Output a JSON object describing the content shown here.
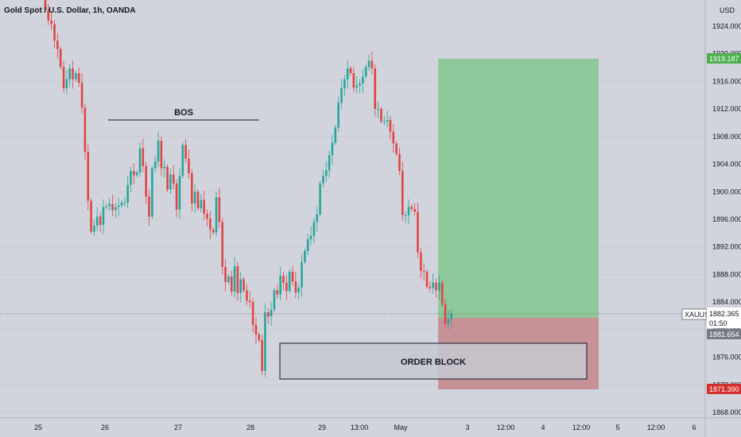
{
  "chart": {
    "title": "Gold Spot / U.S. Dollar, 1h, OANDA",
    "currency": "USD",
    "price_ticks": [
      "1924.000",
      "1920.000",
      "1916.000",
      "1912.000",
      "1908.000",
      "1904.000",
      "1900.000",
      "1896.000",
      "1892.000",
      "1888.000",
      "1884.000",
      "1880.000",
      "1876.000",
      "1872.000",
      "1868.000"
    ],
    "time_ticks": [
      "25",
      "26",
      "27",
      "28",
      "29",
      "13:00",
      "May",
      "3",
      "12:00",
      "4",
      "12:00",
      "5",
      "12:00",
      "6"
    ],
    "annotations": {
      "bos": "BOS",
      "order_block": "ORDER BLOCK"
    },
    "badges": {
      "target": "1919.187",
      "symbol": "XAUUSD",
      "last_price": "1882.365",
      "countdown": "01:50",
      "entry": "1881.654",
      "stop": "1871.390"
    },
    "colors": {
      "background": "#d1d4dc",
      "bull": "#26a69a",
      "bear": "#e04545",
      "profit_zone": "#8fc89a",
      "loss_zone": "#c79198",
      "order_block": "#c5c8d0",
      "target_badge": "#4caf50",
      "stop_badge": "#d32f2f"
    }
  },
  "chart_data": {
    "type": "candlestick",
    "title": "Gold Spot / U.S. Dollar, 1h, OANDA",
    "ylabel": "USD",
    "ylim": [
      1866.5,
      1926.0
    ],
    "closes": [
      1926.4,
      1924.8,
      1924.3,
      1921.9,
      1920.7,
      1918.1,
      1915.0,
      1916.3,
      1917.9,
      1916.3,
      1917.2,
      1915.8,
      1912.2,
      1905.8,
      1898.7,
      1894.2,
      1895.1,
      1896.4,
      1895.2,
      1897.8,
      1897.9,
      1898.2,
      1897.3,
      1897.8,
      1898.0,
      1898.4,
      1898.4,
      1901.0,
      1903.0,
      1902.4,
      1902.8,
      1906.3,
      1903.7,
      1899.3,
      1896.4,
      1903.4,
      1904.4,
      1907.4,
      1903.4,
      1903.6,
      1900.3,
      1902.5,
      1901.2,
      1897.4,
      1902.3,
      1906.8,
      1904.8,
      1902.7,
      1898.3,
      1900.0,
      1897.6,
      1898.8,
      1896.8,
      1896.1,
      1894.5,
      1894.1,
      1899.2,
      1895.6,
      1889.1,
      1886.9,
      1887.7,
      1885.5,
      1889.2,
      1885.3,
      1887.3,
      1885.7,
      1884.2,
      1884.0,
      1880.7,
      1879.3,
      1878.5,
      1874.0,
      1882.5,
      1881.9,
      1882.9,
      1885.7,
      1885.1,
      1887.8,
      1886.8,
      1885.6,
      1888.4,
      1887.0,
      1885.4,
      1886.1,
      1889.8,
      1891.4,
      1893.1,
      1893.6,
      1895.6,
      1896.7,
      1901.2,
      1902.3,
      1903.1,
      1905.3,
      1907.1,
      1909.3,
      1912.9,
      1915.0,
      1916.3,
      1917.9,
      1917.2,
      1915.1,
      1915.4,
      1915.7,
      1916.7,
      1918.1,
      1919.0,
      1917.9,
      1912.0,
      1912.0,
      1910.2,
      1910.2,
      1910.4,
      1908.7,
      1907.0,
      1905.5,
      1903.0,
      1896.6,
      1896.6,
      1897.8,
      1897.5,
      1897.1,
      1891.2,
      1888.5,
      1888.4,
      1886.2,
      1886.0,
      1886.8,
      1885.7,
      1886.8,
      1883.7,
      1880.8,
      1881.5,
      1882.365
    ],
    "x_pixel_note": "candles drawn left to right at fixed spacing"
  }
}
